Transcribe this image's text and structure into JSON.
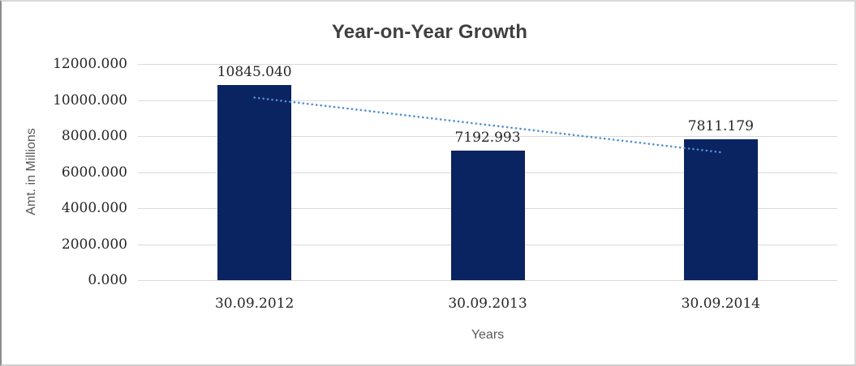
{
  "chart_data": {
    "type": "bar",
    "title": "Year-on-Year Growth",
    "xlabel": "Years",
    "ylabel": "Amt. in Millions",
    "categories": [
      "30.09.2012",
      "30.09.2013",
      "30.09.2014"
    ],
    "values": [
      10845.04,
      7192.993,
      7811.179
    ],
    "data_labels": [
      "10845.040",
      "7192.993",
      "7811.179"
    ],
    "ylim": [
      0,
      12000
    ],
    "y_ticks": [
      {
        "value": 0,
        "label": "0.000"
      },
      {
        "value": 2000,
        "label": "2000.000"
      },
      {
        "value": 4000,
        "label": "4000.000"
      },
      {
        "value": 6000,
        "label": "6000.000"
      },
      {
        "value": 8000,
        "label": "8000.000"
      },
      {
        "value": 10000,
        "label": "10000.000"
      },
      {
        "value": 12000,
        "label": "12000.000"
      }
    ],
    "grid": true,
    "legend": "none",
    "trendline": {
      "style": "dotted",
      "start_value": 10133.3,
      "end_value": 7099.5
    },
    "colors": {
      "bar": "#0a2361",
      "grid": "#d9d9d9",
      "trend": "#4e8fd0",
      "title_text": "#3f3f3f",
      "tick_text": "#262626",
      "axis_title_text": "#595959"
    }
  }
}
